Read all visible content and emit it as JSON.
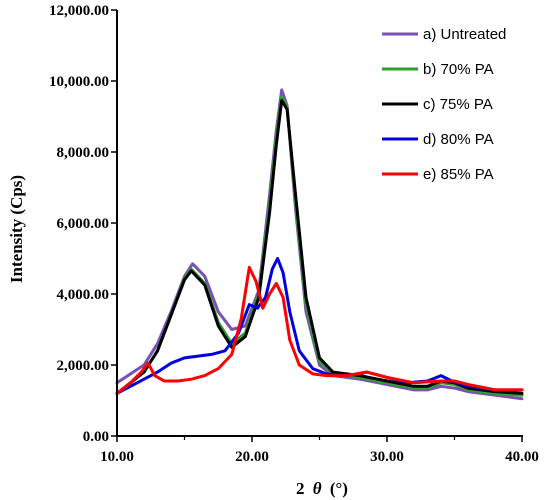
{
  "chart_data": {
    "type": "line",
    "title": "",
    "xlabel_prefix": "2",
    "xlabel_symbol": "θ",
    "xlabel_unit": "(°)",
    "ylabel": "Intensity (Cps)",
    "xlim": [
      10,
      40
    ],
    "ylim": [
      0,
      12000
    ],
    "xticks": [
      10,
      20,
      30,
      40
    ],
    "xtick_labels": [
      "10.00",
      "20.00",
      "30.00",
      "40.00"
    ],
    "yticks": [
      0,
      2000,
      4000,
      6000,
      8000,
      10000,
      12000
    ],
    "ytick_labels": [
      "0.00",
      "2,000.00",
      "4,000.00",
      "6,000.00",
      "8,000.00",
      "10,000.00",
      "12,000.00"
    ],
    "grid": false,
    "legend_position": "top-right",
    "series": [
      {
        "name": "a) Untreated",
        "color": "#7b4fb3",
        "x": [
          10,
          11,
          12,
          13,
          14,
          15,
          15.6,
          16.5,
          17.5,
          18.5,
          19.5,
          20.5,
          21.3,
          21.8,
          22.2,
          22.6,
          23.2,
          24,
          25,
          26,
          27,
          28,
          30,
          32,
          33,
          34,
          35,
          36,
          38,
          40
        ],
        "y": [
          1500,
          1750,
          2000,
          2600,
          3500,
          4500,
          4850,
          4500,
          3500,
          3000,
          3100,
          4100,
          6800,
          8600,
          9750,
          9300,
          6500,
          3500,
          2000,
          1700,
          1650,
          1600,
          1450,
          1300,
          1300,
          1400,
          1350,
          1250,
          1150,
          1050
        ]
      },
      {
        "name": "b) 70% PA",
        "color": "#2ca02c",
        "x": [
          10,
          11,
          12,
          13,
          14,
          15,
          15.5,
          16.5,
          17.5,
          18.5,
          19.5,
          20.5,
          21.3,
          21.8,
          22.2,
          22.6,
          23.2,
          24,
          25,
          26,
          27,
          28,
          30,
          32,
          33,
          34,
          35,
          36,
          38,
          40
        ],
        "y": [
          1200,
          1500,
          1800,
          2400,
          3400,
          4450,
          4700,
          4300,
          3200,
          2600,
          2900,
          4000,
          6500,
          8400,
          9550,
          9250,
          6700,
          3700,
          2100,
          1750,
          1700,
          1650,
          1500,
          1350,
          1350,
          1500,
          1450,
          1300,
          1200,
          1150
        ]
      },
      {
        "name": "c) 75% PA",
        "color": "#000000",
        "x": [
          10,
          11,
          12,
          13,
          14,
          15,
          15.5,
          16.5,
          17.5,
          18.5,
          19.5,
          20.5,
          21.3,
          21.8,
          22.2,
          22.6,
          23.2,
          24,
          25,
          26,
          27,
          28,
          30,
          32,
          33,
          34,
          35,
          36,
          38,
          40
        ],
        "y": [
          1200,
          1500,
          1800,
          2400,
          3400,
          4400,
          4650,
          4250,
          3100,
          2500,
          2800,
          3900,
          6300,
          8200,
          9450,
          9200,
          6900,
          3900,
          2200,
          1800,
          1750,
          1700,
          1550,
          1400,
          1400,
          1550,
          1500,
          1350,
          1250,
          1200
        ]
      },
      {
        "name": "d) 80% PA",
        "color": "#0000dd",
        "x": [
          10,
          11,
          12,
          13,
          14,
          15,
          16,
          17,
          18,
          19,
          19.8,
          20.4,
          21,
          21.5,
          21.9,
          22.3,
          22.8,
          23.5,
          24.5,
          25.5,
          27,
          28.5,
          30,
          31.5,
          33,
          34,
          34.8,
          36,
          38,
          40
        ],
        "y": [
          1200,
          1400,
          1600,
          1800,
          2050,
          2200,
          2250,
          2300,
          2400,
          2900,
          3700,
          3600,
          3900,
          4700,
          5000,
          4600,
          3500,
          2400,
          1900,
          1750,
          1700,
          1800,
          1650,
          1500,
          1550,
          1700,
          1550,
          1400,
          1300,
          1300
        ]
      },
      {
        "name": "e) 85% PA",
        "color": "#ff0000",
        "x": [
          10,
          11,
          11.8,
          12.3,
          12.8,
          13.5,
          14.5,
          15.5,
          16.5,
          17.5,
          18.5,
          19.2,
          19.8,
          20.3,
          20.8,
          21.3,
          21.8,
          22.3,
          22.8,
          23.5,
          24.5,
          25.5,
          27,
          28.5,
          30,
          32,
          34,
          35,
          36,
          38,
          40
        ],
        "y": [
          1200,
          1500,
          1800,
          2050,
          1700,
          1550,
          1550,
          1600,
          1700,
          1900,
          2300,
          3300,
          4750,
          4350,
          3600,
          4000,
          4300,
          3900,
          2700,
          2000,
          1750,
          1700,
          1700,
          1800,
          1650,
          1500,
          1550,
          1550,
          1450,
          1300,
          1300
        ]
      }
    ]
  }
}
